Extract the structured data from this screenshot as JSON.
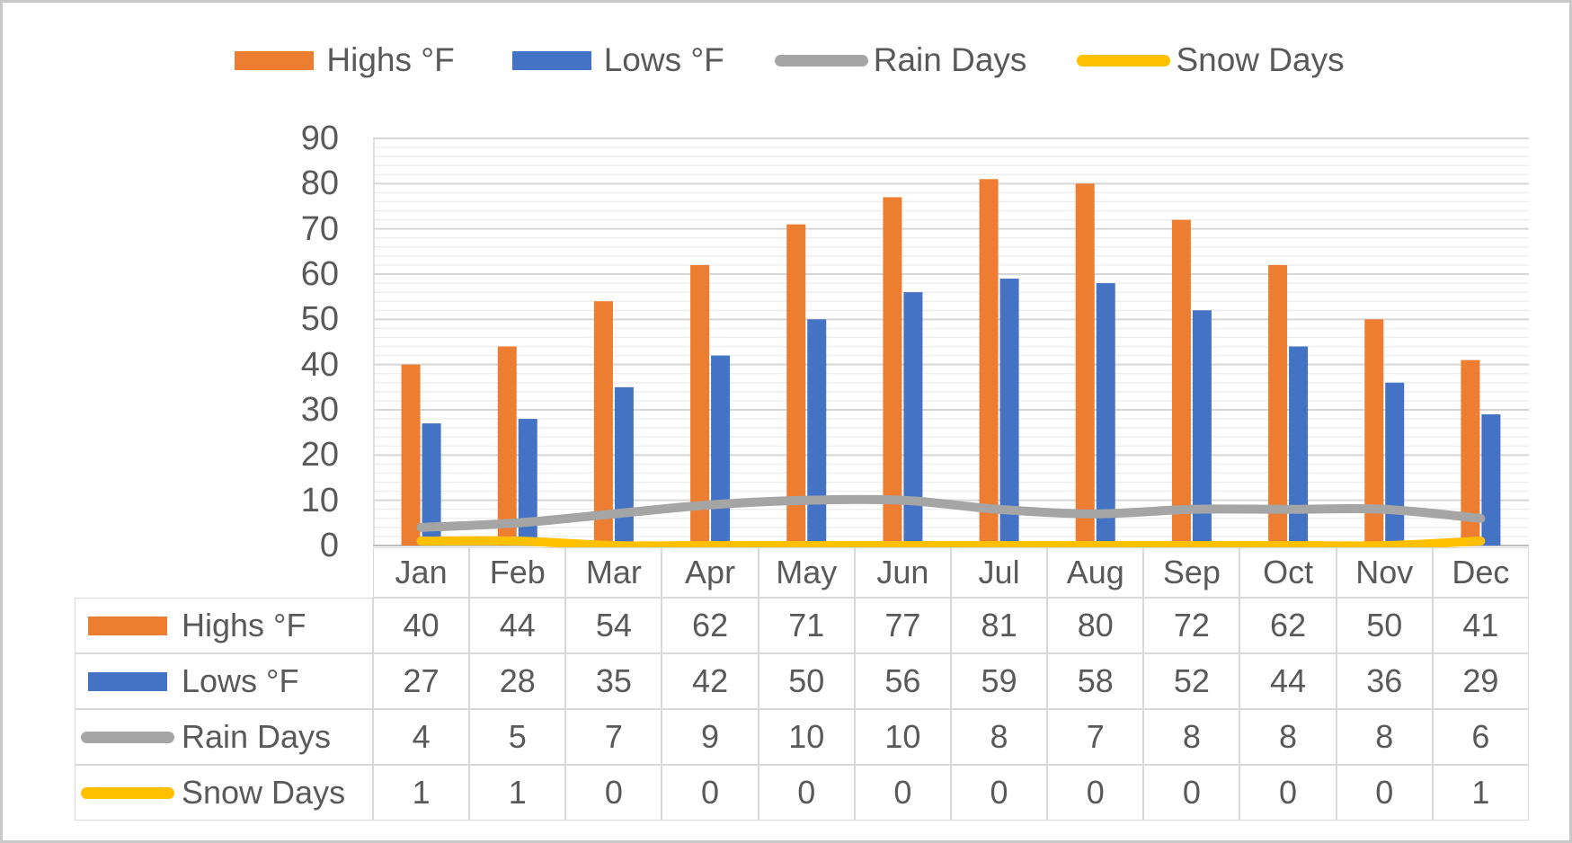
{
  "colors": {
    "highs": "#ED7D31",
    "lows": "#4472C4",
    "rain": "#A5A5A5",
    "snow": "#FFC000",
    "text": "#595959",
    "grid_major": "#D6D6D6",
    "grid_minor": "#EDEDED",
    "axis_line": "#BFBFBF",
    "plot_left_border": "#D9D9D9",
    "table_border": "#D9D9D9",
    "frame_border": "#C9C9C9"
  },
  "legend": {
    "position": "top",
    "items": [
      {
        "label": "Highs °F",
        "key_shape": "bar",
        "color": "#ED7D31"
      },
      {
        "label": "Lows °F",
        "key_shape": "bar",
        "color": "#4472C4"
      },
      {
        "label": "Rain Days",
        "key_shape": "line",
        "color": "#A5A5A5"
      },
      {
        "label": "Snow Days",
        "key_shape": "line",
        "color": "#FFC000"
      }
    ]
  },
  "chart_data": {
    "type": "bar",
    "subtype": "combo bar+line with attached data table",
    "title": "",
    "xlabel": "",
    "ylabel": "",
    "categories": [
      "Jan",
      "Feb",
      "Mar",
      "Apr",
      "May",
      "Jun",
      "Jul",
      "Aug",
      "Sep",
      "Oct",
      "Nov",
      "Dec"
    ],
    "series": [
      {
        "name": "Highs °F",
        "type": "bar",
        "color": "#ED7D31",
        "values": [
          40,
          44,
          54,
          62,
          71,
          77,
          81,
          80,
          72,
          62,
          50,
          41
        ]
      },
      {
        "name": "Lows °F",
        "type": "bar",
        "color": "#4472C4",
        "values": [
          27,
          28,
          35,
          42,
          50,
          56,
          59,
          58,
          52,
          44,
          36,
          29
        ]
      },
      {
        "name": "Rain Days",
        "type": "line",
        "color": "#A5A5A5",
        "values": [
          4,
          5,
          7,
          9,
          10,
          10,
          8,
          7,
          8,
          8,
          8,
          6
        ]
      },
      {
        "name": "Snow Days",
        "type": "line",
        "color": "#FFC000",
        "values": [
          1,
          1,
          0,
          0,
          0,
          0,
          0,
          0,
          0,
          0,
          0,
          1
        ]
      }
    ],
    "ylim": [
      0,
      90
    ],
    "y_ticks": [
      0,
      10,
      20,
      30,
      40,
      50,
      60,
      70,
      80,
      90
    ],
    "grid": "horizontal major every 10, minor every 2",
    "legend_position": "top",
    "line_smoothing": true
  }
}
